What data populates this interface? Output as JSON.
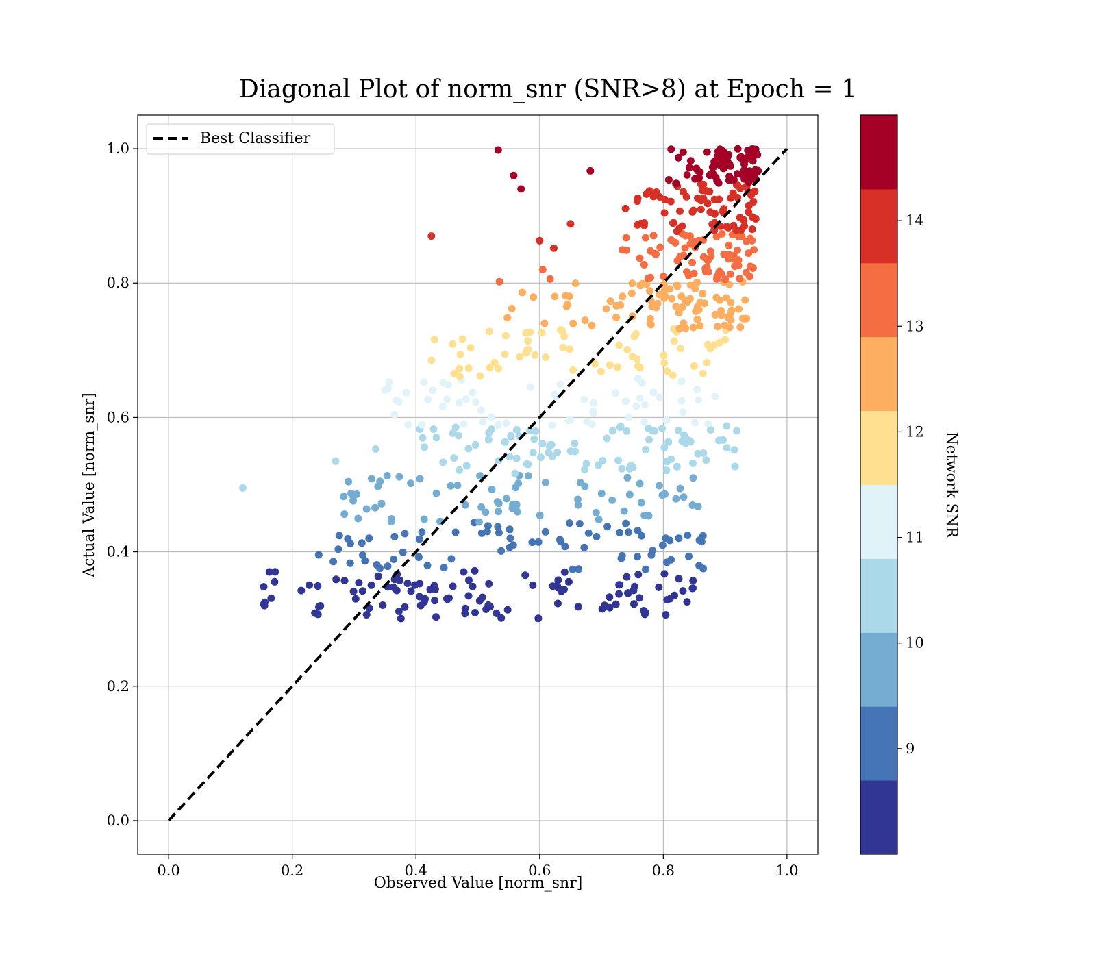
{
  "chart_data": {
    "type": "scatter",
    "title": "Diagonal Plot of norm_snr (SNR>8) at Epoch = 1",
    "xlabel": "Observed Value [norm_snr]",
    "ylabel": "Actual Value [norm_snr]",
    "xlim": [
      -0.05,
      1.05
    ],
    "ylim": [
      -0.05,
      1.05
    ],
    "xticks": [
      0.0,
      0.2,
      0.4,
      0.6,
      0.8,
      1.0
    ],
    "yticks": [
      0.0,
      0.2,
      0.4,
      0.6,
      0.8,
      1.0
    ],
    "xtick_labels": [
      "0.0",
      "0.2",
      "0.4",
      "0.6",
      "0.8",
      "1.0"
    ],
    "ytick_labels": [
      "0.0",
      "0.2",
      "0.4",
      "0.6",
      "0.8",
      "1.0"
    ],
    "grid": true,
    "legend": {
      "placement": "top-left",
      "entries": [
        "Best Classifier"
      ]
    },
    "reference_line": {
      "name": "Best Classifier",
      "x": [
        0.0,
        1.0
      ],
      "y": [
        0.0,
        1.0
      ],
      "style": "dashed",
      "color": "#000000"
    },
    "colorbar": {
      "label": "Network SNR",
      "range": [
        8.0,
        15.0
      ],
      "ticks": [
        9,
        10,
        11,
        12,
        13,
        14
      ],
      "tick_labels": [
        "9",
        "10",
        "11",
        "12",
        "13",
        "14"
      ],
      "colors": [
        "#313695",
        "#4575b4",
        "#74add1",
        "#abd9e9",
        "#e0f3f8",
        "#fee090",
        "#fdae61",
        "#f46d43",
        "#d73027",
        "#a50026"
      ]
    },
    "bands": [
      {
        "y_min": 0.3,
        "y_max": 0.372,
        "x_min": 0.15,
        "x_max": 0.85,
        "count": 110
      },
      {
        "y_min": 0.372,
        "y_max": 0.444,
        "x_min": 0.24,
        "x_max": 0.87,
        "count": 75
      },
      {
        "y_min": 0.444,
        "y_max": 0.516,
        "x_min": 0.28,
        "x_max": 0.87,
        "count": 70
      },
      {
        "y_min": 0.516,
        "y_max": 0.588,
        "x_min": 0.4,
        "x_max": 0.92,
        "count": 85
      },
      {
        "y_min": 0.588,
        "y_max": 0.66,
        "x_min": 0.35,
        "x_max": 0.92,
        "count": 60
      },
      {
        "y_min": 0.66,
        "y_max": 0.732,
        "x_min": 0.45,
        "x_max": 0.92,
        "count": 60
      },
      {
        "y_min": 0.732,
        "y_max": 0.804,
        "x_min": 0.53,
        "x_max": 0.94,
        "count": 85
      },
      {
        "y_min": 0.804,
        "y_max": 0.876,
        "x_min": 0.72,
        "x_max": 0.95,
        "count": 75
      },
      {
        "y_min": 0.876,
        "y_max": 0.948,
        "x_min": 0.73,
        "x_max": 0.95,
        "count": 75
      },
      {
        "y_min": 0.948,
        "y_max": 1.0,
        "x_min": 0.8,
        "x_max": 0.96,
        "count": 85
      }
    ],
    "outliers": [
      {
        "x": 0.12,
        "y": 0.495,
        "band": 3
      },
      {
        "x": 0.155,
        "y": 0.32,
        "band": 0
      },
      {
        "x": 0.163,
        "y": 0.37,
        "band": 0
      },
      {
        "x": 0.27,
        "y": 0.535,
        "band": 3
      },
      {
        "x": 0.335,
        "y": 0.553,
        "band": 3
      },
      {
        "x": 0.355,
        "y": 0.643,
        "band": 4
      },
      {
        "x": 0.43,
        "y": 0.716,
        "band": 5
      },
      {
        "x": 0.425,
        "y": 0.685,
        "band": 5
      },
      {
        "x": 0.425,
        "y": 0.87,
        "band": 8
      },
      {
        "x": 0.533,
        "y": 0.998,
        "band": 9
      },
      {
        "x": 0.558,
        "y": 0.96,
        "band": 9
      },
      {
        "x": 0.57,
        "y": 0.94,
        "band": 9
      },
      {
        "x": 0.682,
        "y": 0.967,
        "band": 9
      },
      {
        "x": 0.535,
        "y": 0.802,
        "band": 7
      },
      {
        "x": 0.6,
        "y": 0.863,
        "band": 8
      },
      {
        "x": 0.623,
        "y": 0.852,
        "band": 8
      },
      {
        "x": 0.65,
        "y": 0.888,
        "band": 8
      },
      {
        "x": 0.605,
        "y": 0.82,
        "band": 7
      },
      {
        "x": 0.617,
        "y": 0.806,
        "band": 7
      },
      {
        "x": 0.555,
        "y": 0.762,
        "band": 6
      },
      {
        "x": 0.572,
        "y": 0.786,
        "band": 6
      },
      {
        "x": 0.59,
        "y": 0.779,
        "band": 6
      },
      {
        "x": 0.645,
        "y": 0.768,
        "band": 6
      },
      {
        "x": 0.825,
        "y": 0.36,
        "band": 0
      },
      {
        "x": 0.848,
        "y": 0.346,
        "band": 0
      },
      {
        "x": 0.862,
        "y": 0.415,
        "band": 1
      },
      {
        "x": 0.916,
        "y": 0.527,
        "band": 3
      },
      {
        "x": 0.89,
        "y": 0.566,
        "band": 3
      }
    ]
  }
}
